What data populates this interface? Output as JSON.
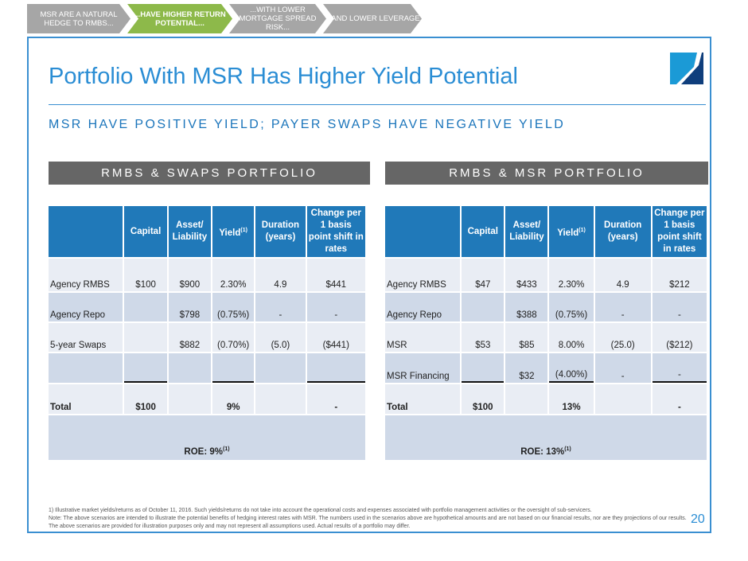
{
  "progress_steps": [
    {
      "label": "MSR ARE A NATURAL HEDGE TO RMBS...",
      "active": false
    },
    {
      "label": "...HAVE HIGHER RETURN POTENTIAL...",
      "active": true
    },
    {
      "label": "...WITH LOWER MORTGAGE SPREAD RISK...",
      "active": false
    },
    {
      "label": "...AND LOWER LEVERAGE",
      "active": false
    }
  ],
  "colors": {
    "accent": "#2a8dd4",
    "header": "#2079b9",
    "active_step": "#8db94a",
    "inactive_step": "#a6a6a6",
    "section_bar": "#666666"
  },
  "title": "Portfolio With MSR Has Higher Yield Potential",
  "subtitle": "MSR HAVE POSITIVE YIELD; PAYER SWAPS HAVE NEGATIVE YIELD",
  "logo": "company-logo",
  "tables": [
    {
      "heading": "RMBS & SWAPS PORTFOLIO",
      "columns": [
        "",
        "Capital",
        "Asset/ Liability",
        "Yield",
        "Duration (years)",
        "Change per 1 basis point shift in rates"
      ],
      "rows": [
        [
          "Agency RMBS",
          "$100",
          "$900",
          "2.30%",
          "4.9",
          "$441"
        ],
        [
          "Agency Repo",
          "",
          "$798",
          "(0.75%)",
          "-",
          "-"
        ],
        [
          "5-year Swaps",
          "",
          "$882",
          "(0.70%)",
          "(5.0)",
          "($441)"
        ],
        [
          "",
          "",
          "",
          "",
          "",
          ""
        ]
      ],
      "total": [
        "Total",
        "$100",
        "",
        "9%",
        "",
        "-"
      ],
      "roe": "ROE:  9%"
    },
    {
      "heading": "RMBS & MSR PORTFOLIO",
      "columns": [
        "",
        "Capital",
        "Asset/ Liability",
        "Yield",
        "Duration (years)",
        "Change per 1 basis point shift in rates"
      ],
      "rows": [
        [
          "Agency RMBS",
          "$47",
          "$433",
          "2.30%",
          "4.9",
          "$212"
        ],
        [
          "Agency Repo",
          "",
          "$388",
          "(0.75%)",
          "-",
          "-"
        ],
        [
          "MSR",
          "$53",
          "$85",
          "8.00%",
          "(25.0)",
          "($212)"
        ],
        [
          "MSR Financing",
          "",
          "$32",
          "(4.00%)",
          "-",
          "-"
        ]
      ],
      "total": [
        "Total",
        "$100",
        "",
        "13%",
        "",
        "-"
      ],
      "roe": "ROE: 13%"
    }
  ],
  "footnote_marker": "(1)",
  "footnotes": [
    "1)      Illustrative market yields/returns as of October 11, 2016. Such yields/returns do not take into account the operational costs and expenses associated with portfolio management activities or the oversight of sub-servicers.",
    "Note: The above scenarios are intended to illustrate the potential benefits of hedging interest rates with MSR. The numbers used in the scenarios above are hypothetical amounts and are not based on our financial results, nor are they projections of our results.  The above scenarios are provided for illustration purposes only and may not represent all assumptions used. Actual results of a portfolio may differ."
  ],
  "page_number": "20"
}
